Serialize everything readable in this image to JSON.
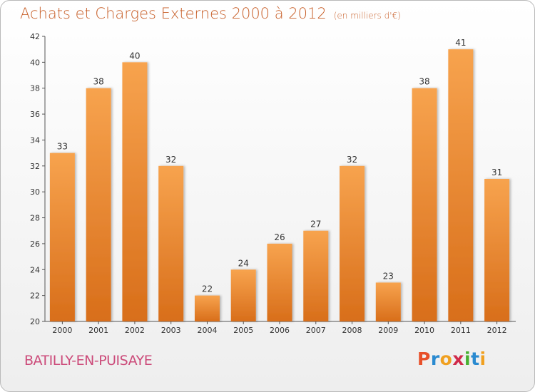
{
  "header": {
    "title": "Achats et Charges Externes 2000 à 2012",
    "unit": "(en milliers d'€)"
  },
  "footer": {
    "commune": "BATILLY-EN-PUISAYE",
    "logo_letters": [
      "P",
      "r",
      "o",
      "x",
      "i",
      "t",
      "i"
    ],
    "logo_colors": [
      "#e8502a",
      "#2a8ad0",
      "#f0a020",
      "#d02a4a",
      "#48b030",
      "#2a8ad0",
      "#f0a020"
    ]
  },
  "colors": {
    "bar_top": "#f7a34e",
    "bar_bottom": "#d86e1a",
    "title": "#c8602a",
    "commune": "#cc4b7a"
  },
  "chart_data": {
    "type": "bar",
    "title": "Achats et Charges Externes 2000 à 2012",
    "subtitle": "(en milliers d'€)",
    "xlabel": "",
    "ylabel": "",
    "categories": [
      "2000",
      "2001",
      "2002",
      "2003",
      "2004",
      "2005",
      "2006",
      "2007",
      "2008",
      "2009",
      "2010",
      "2011",
      "2012"
    ],
    "values": [
      33,
      38,
      40,
      32,
      22,
      24,
      26,
      27,
      32,
      23,
      38,
      41,
      31
    ],
    "ylim": [
      20,
      42
    ],
    "yticks": [
      20,
      22,
      24,
      26,
      28,
      30,
      32,
      34,
      36,
      38,
      40,
      42
    ],
    "grid": false,
    "legend": "none"
  }
}
